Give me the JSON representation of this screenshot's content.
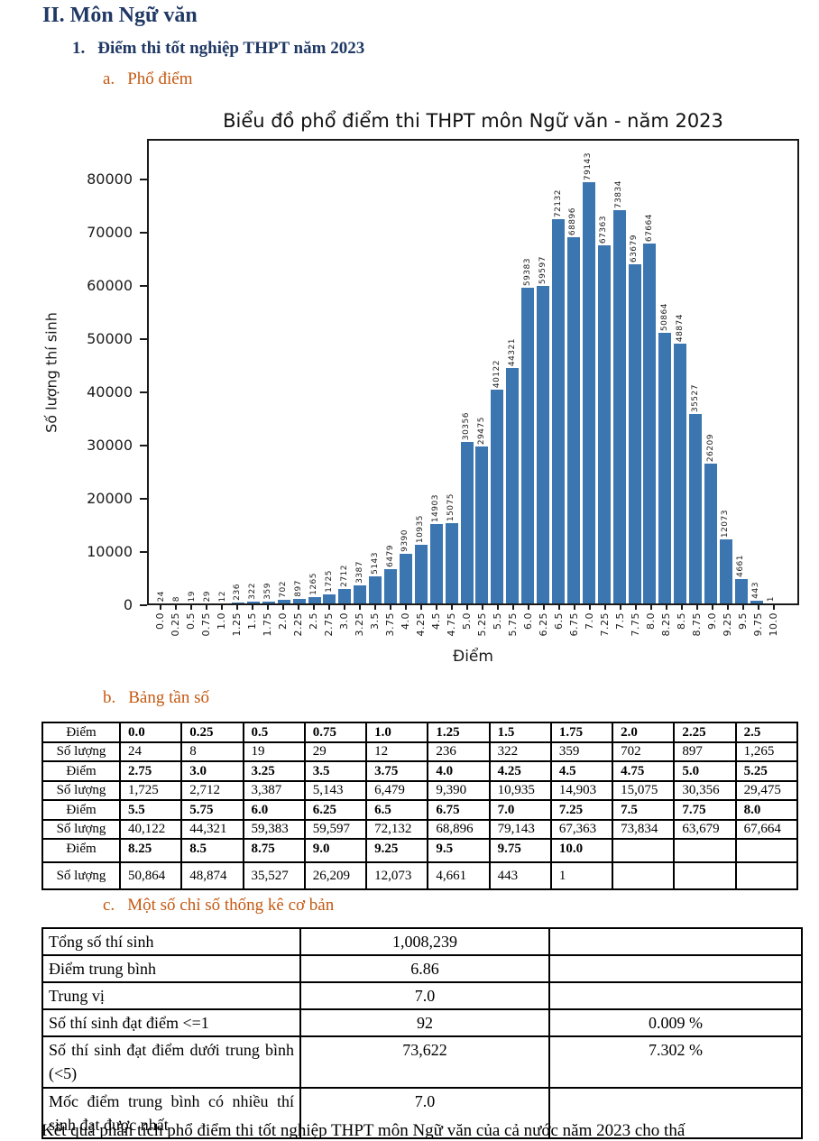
{
  "headings": {
    "h1": "II. Môn Ngữ văn",
    "h2_num": "1.",
    "h2_text": "Điểm thi tốt nghiệp THPT năm 2023",
    "a_marker": "a.",
    "a_text": "Phổ điểm",
    "b_marker": "b.",
    "b_text": "Bảng tần số",
    "c_marker": "c.",
    "c_text": "Một số chỉ số thống kê cơ bản"
  },
  "colors": {
    "heading_navy": "#1F3864",
    "heading_orange": "#C45911",
    "bar_blue": "#3C76B0"
  },
  "chart_data": {
    "type": "bar",
    "title": "Biểu đồ phổ điểm thi THPT môn Ngữ văn - năm 2023",
    "xlabel": "Điểm",
    "ylabel": "Số lượng thí sinh",
    "categories": [
      "0.0",
      "0.25",
      "0.5",
      "0.75",
      "1.0",
      "1.25",
      "1.5",
      "1.75",
      "2.0",
      "2.25",
      "2.5",
      "2.75",
      "3.0",
      "3.25",
      "3.5",
      "3.75",
      "4.0",
      "4.25",
      "4.5",
      "4.75",
      "5.0",
      "5.25",
      "5.5",
      "5.75",
      "6.0",
      "6.25",
      "6.5",
      "6.75",
      "7.0",
      "7.25",
      "7.5",
      "7.75",
      "8.0",
      "8.25",
      "8.5",
      "8.75",
      "9.0",
      "9.25",
      "9.5",
      "9.75",
      "10.0"
    ],
    "values": [
      24,
      8,
      19,
      29,
      12,
      236,
      322,
      359,
      702,
      897,
      1265,
      1725,
      2712,
      3387,
      5143,
      6479,
      9390,
      10935,
      14903,
      15075,
      30356,
      29475,
      40122,
      44321,
      59383,
      59597,
      72132,
      68896,
      79143,
      67363,
      73834,
      63679,
      67664,
      50864,
      48874,
      35527,
      26209,
      12073,
      4661,
      443,
      1
    ],
    "yticks": [
      0,
      10000,
      20000,
      30000,
      40000,
      50000,
      60000,
      70000,
      80000
    ],
    "ylim": [
      0,
      87000
    ],
    "grid": false,
    "bar_labels": true,
    "bar_color": "#3C76B0",
    "legend": null
  },
  "freq_table": {
    "rows": [
      {
        "label": "Điểm",
        "bold": true,
        "cells": [
          "0.0",
          "0.25",
          "0.5",
          "0.75",
          "1.0",
          "1.25",
          "1.5",
          "1.75",
          "2.0",
          "2.25",
          "2.5"
        ]
      },
      {
        "label": "Số lượng",
        "bold": false,
        "cells": [
          "24",
          "8",
          "19",
          "29",
          "12",
          "236",
          "322",
          "359",
          "702",
          "897",
          "1,265"
        ]
      },
      {
        "label": "Điểm",
        "bold": true,
        "cells": [
          "2.75",
          "3.0",
          "3.25",
          "3.5",
          "3.75",
          "4.0",
          "4.25",
          "4.5",
          "4.75",
          "5.0",
          "5.25"
        ]
      },
      {
        "label": "Số lượng",
        "bold": false,
        "cells": [
          "1,725",
          "2,712",
          "3,387",
          "5,143",
          "6,479",
          "9,390",
          "10,935",
          "14,903",
          "15,075",
          "30,356",
          "29,475"
        ]
      },
      {
        "label": "Điểm",
        "bold": true,
        "cells": [
          "5.5",
          "5.75",
          "6.0",
          "6.25",
          "6.5",
          "6.75",
          "7.0",
          "7.25",
          "7.5",
          "7.75",
          "8.0"
        ]
      },
      {
        "label": "Số lượng",
        "bold": false,
        "cells": [
          "40,122",
          "44,321",
          "59,383",
          "59,597",
          "72,132",
          "68,896",
          "79,143",
          "67,363",
          "73,834",
          "63,679",
          "67,664"
        ]
      },
      {
        "label": "Điểm",
        "bold": true,
        "cells": [
          "8.25",
          "8.5",
          "8.75",
          "9.0",
          "9.25",
          "9.5",
          "9.75",
          "10.0",
          "",
          "",
          ""
        ]
      },
      {
        "label": "Số lượng",
        "bold": false,
        "cells": [
          "50,864",
          "48,874",
          "35,527",
          "26,209",
          "12,073",
          "4,661",
          "443",
          "1",
          "",
          "",
          ""
        ]
      }
    ]
  },
  "stats_table": {
    "rows": [
      {
        "label": "Tổng số thí sinh",
        "value": "1,008,239",
        "percent": ""
      },
      {
        "label": "Điểm trung bình",
        "value": "6.86",
        "percent": ""
      },
      {
        "label": "Trung vị",
        "value": "7.0",
        "percent": ""
      },
      {
        "label": "Số thí sinh đạt điểm <=1",
        "value": "92",
        "percent": "0.009 %"
      },
      {
        "label": "Số thí sinh đạt điểm dưới trung bình (<5)",
        "value": "73,622",
        "percent": "7.302 %"
      },
      {
        "label": "Mốc điểm trung bình có nhiều thí sinh đạt được nhất",
        "value": "7.0",
        "percent": ""
      }
    ]
  },
  "footer_partial": "Kết quả phân tích phổ điểm thi tốt nghiệp THPT môn Ngữ văn của cả nước năm 2023 cho thấ"
}
